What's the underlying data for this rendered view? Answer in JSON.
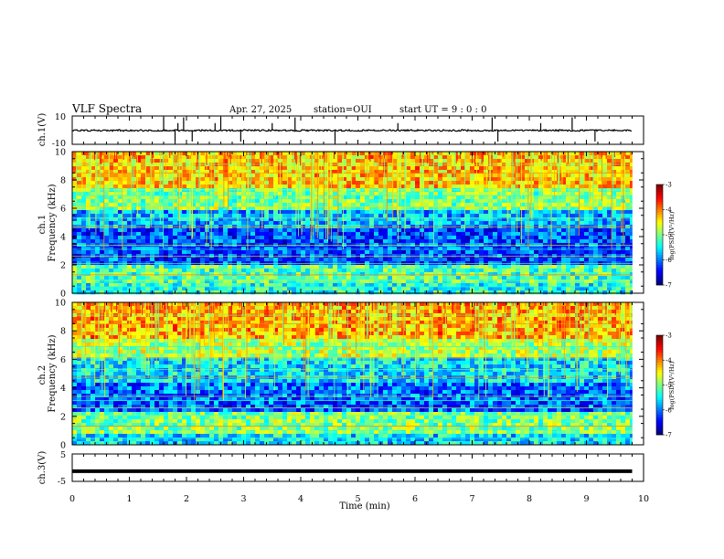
{
  "header": {
    "title": "VLF Spectra",
    "date": "Apr. 27, 2025",
    "station": "station=OUI",
    "start_ut": "start UT =  9 : 0  : 0"
  },
  "chart_data": [
    {
      "type": "line",
      "panel": "ch1-waveform",
      "ylabel": "ch.1(V)",
      "ylim": [
        -10,
        10
      ],
      "yticks": [
        "10",
        "-10"
      ],
      "baseline": -0.2,
      "noise_amplitude": 0.6,
      "spike_times_min": [
        1.6,
        1.8,
        1.85,
        1.95,
        2.1,
        2.5,
        2.6,
        2.95,
        3.5,
        3.9,
        4.6,
        5.7,
        7.35,
        7.45,
        8.2,
        8.75,
        9.15
      ]
    },
    {
      "type": "heatmap",
      "panel": "ch1-spectrogram",
      "ylabel": "ch.1 Frequency (kHz)",
      "ylim": [
        0,
        10
      ],
      "yticks": [
        "0",
        "2",
        "4",
        "6",
        "8",
        "10"
      ],
      "value_scale": "log(PSD)",
      "colorbar": {
        "label": "log(PSD)(V²/Hz)",
        "range": [
          -7,
          -3
        ],
        "ticks": [
          "-3",
          "-4",
          "-5",
          "-6",
          "-7"
        ]
      },
      "bands": [
        {
          "f": [
            0.0,
            0.8
          ],
          "level": -5.4
        },
        {
          "f": [
            0.8,
            2.2
          ],
          "level": -5.2
        },
        {
          "f": [
            2.2,
            4.6
          ],
          "level": -6.2
        },
        {
          "f": [
            4.6,
            6.0
          ],
          "level": -5.8
        },
        {
          "f": [
            6.0,
            7.5
          ],
          "level": -5.0
        },
        {
          "f": [
            7.5,
            10.0
          ],
          "level": -4.3
        }
      ]
    },
    {
      "type": "heatmap",
      "panel": "ch2-spectrogram",
      "ylabel": "ch.2 Frequency (kHz)",
      "ylim": [
        0,
        10
      ],
      "yticks": [
        "0",
        "2",
        "4",
        "6",
        "8",
        "10"
      ],
      "value_scale": "log(PSD)",
      "colorbar": {
        "label": "log(PSD)(V²/Hz)",
        "range": [
          -7,
          -3
        ],
        "ticks": [
          "-3",
          "-4",
          "-5",
          "-6",
          "-7"
        ]
      },
      "bands": [
        {
          "f": [
            0.0,
            0.8
          ],
          "level": -5.6
        },
        {
          "f": [
            0.8,
            2.4
          ],
          "level": -5.0
        },
        {
          "f": [
            2.4,
            4.6
          ],
          "level": -6.1
        },
        {
          "f": [
            4.6,
            6.2
          ],
          "level": -5.6
        },
        {
          "f": [
            6.2,
            7.6
          ],
          "level": -4.8
        },
        {
          "f": [
            7.6,
            10.0
          ],
          "level": -4.2
        }
      ]
    },
    {
      "type": "line",
      "panel": "ch3-waveform",
      "ylabel": "ch.3(V)",
      "ylim": [
        -5,
        5
      ],
      "yticks": [
        "5",
        "-5"
      ],
      "baseline": -1.3
    }
  ],
  "xaxis": {
    "label": "Time (min)",
    "range": [
      0,
      10
    ],
    "ticks": [
      "0",
      "1",
      "2",
      "3",
      "4",
      "5",
      "6",
      "7",
      "8",
      "9",
      "10"
    ],
    "data_end": 9.8
  }
}
